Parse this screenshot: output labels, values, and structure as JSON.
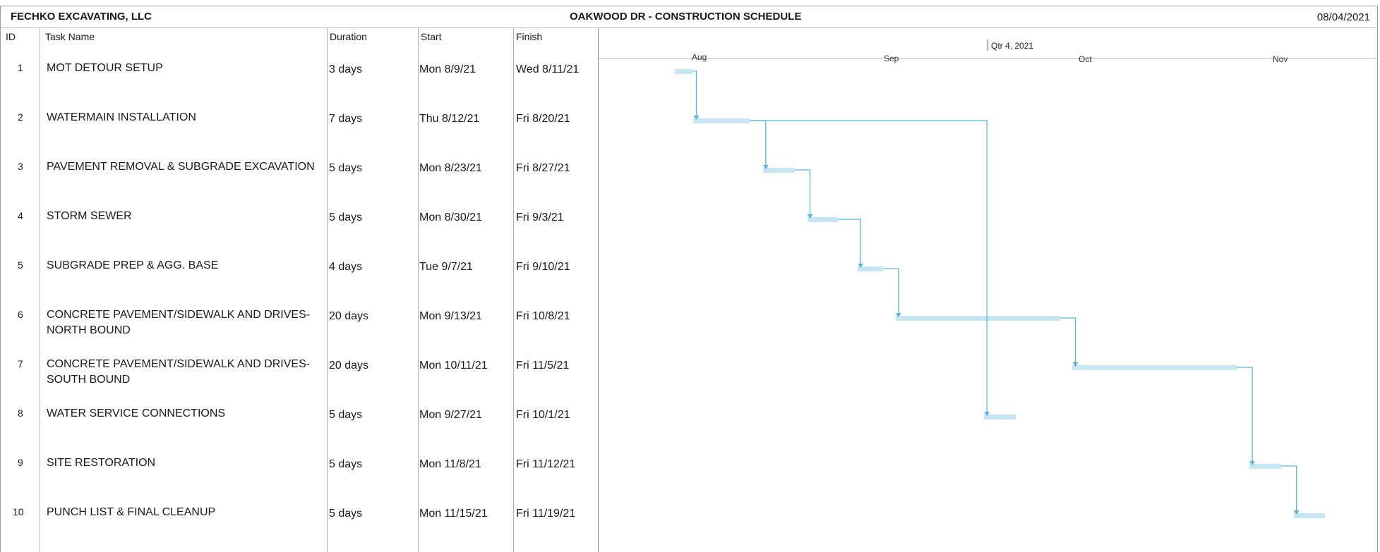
{
  "header": {
    "company": "FECHKO EXCAVATING, LLC",
    "title": "OAKWOOD DR - CONSTRUCTION SCHEDULE",
    "date": "08/04/2021"
  },
  "columns": {
    "id": "ID",
    "task_name": "Task Name",
    "duration": "Duration",
    "start": "Start",
    "finish": "Finish"
  },
  "timescale": {
    "quarter": "Qtr 4, 2021",
    "months": [
      "Aug",
      "Sep",
      "Oct",
      "Nov"
    ]
  },
  "tasks": [
    {
      "id": "1",
      "name": "MOT DETOUR SETUP",
      "name2": "",
      "duration": "3 days",
      "start": "Mon 8/9/21",
      "finish": "Wed 8/11/21"
    },
    {
      "id": "2",
      "name": "WATERMAIN INSTALLATION",
      "name2": "",
      "duration": "7 days",
      "start": "Thu 8/12/21",
      "finish": "Fri 8/20/21"
    },
    {
      "id": "3",
      "name": "PAVEMENT REMOVAL & SUBGRADE EXCAVATION",
      "name2": "",
      "duration": "5 days",
      "start": "Mon 8/23/21",
      "finish": "Fri 8/27/21"
    },
    {
      "id": "4",
      "name": "STORM SEWER",
      "name2": "",
      "duration": "5 days",
      "start": "Mon 8/30/21",
      "finish": "Fri 9/3/21"
    },
    {
      "id": "5",
      "name": "SUBGRADE PREP & AGG. BASE",
      "name2": "",
      "duration": "4 days",
      "start": "Tue 9/7/21",
      "finish": "Fri 9/10/21"
    },
    {
      "id": "6",
      "name": "CONCRETE PAVEMENT/SIDEWALK AND DRIVES-",
      "name2": "NORTH BOUND",
      "duration": "20 days",
      "start": "Mon 9/13/21",
      "finish": "Fri 10/8/21"
    },
    {
      "id": "7",
      "name": "CONCRETE PAVEMENT/SIDEWALK AND DRIVES-",
      "name2": "SOUTH BOUND",
      "duration": "20 days",
      "start": "Mon 10/11/21",
      "finish": "Fri 11/5/21"
    },
    {
      "id": "8",
      "name": "WATER SERVICE CONNECTIONS",
      "name2": "",
      "duration": "5 days",
      "start": "Mon 9/27/21",
      "finish": "Fri 10/1/21"
    },
    {
      "id": "9",
      "name": "SITE RESTORATION",
      "name2": "",
      "duration": "5 days",
      "start": "Mon 11/8/21",
      "finish": "Fri 11/12/21"
    },
    {
      "id": "10",
      "name": "PUNCH LIST & FINAL CLEANUP",
      "name2": "",
      "duration": "5 days",
      "start": "Mon 11/15/21",
      "finish": "Fri 11/19/21"
    }
  ],
  "gantt": {
    "bar_color": "#c7e6f4",
    "link_color": "#5bb3dc",
    "bars": [
      {
        "task": "1",
        "start": "2021-08-09",
        "finish": "2021-08-11"
      },
      {
        "task": "2",
        "start": "2021-08-12",
        "finish": "2021-08-20"
      },
      {
        "task": "3",
        "start": "2021-08-23",
        "finish": "2021-08-27"
      },
      {
        "task": "4",
        "start": "2021-08-30",
        "finish": "2021-09-03"
      },
      {
        "task": "5",
        "start": "2021-09-07",
        "finish": "2021-09-10"
      },
      {
        "task": "6",
        "start": "2021-09-13",
        "finish": "2021-10-08"
      },
      {
        "task": "7",
        "start": "2021-10-11",
        "finish": "2021-11-05"
      },
      {
        "task": "8",
        "start": "2021-09-27",
        "finish": "2021-10-01"
      },
      {
        "task": "9",
        "start": "2021-11-08",
        "finish": "2021-11-12"
      },
      {
        "task": "10",
        "start": "2021-11-15",
        "finish": "2021-11-19"
      }
    ],
    "links": [
      {
        "from": "1",
        "to": "2"
      },
      {
        "from": "2",
        "to": "3"
      },
      {
        "from": "3",
        "to": "4"
      },
      {
        "from": "4",
        "to": "5"
      },
      {
        "from": "5",
        "to": "6"
      },
      {
        "from": "6",
        "to": "7"
      },
      {
        "from": "2",
        "to": "8"
      },
      {
        "from": "7",
        "to": "9"
      },
      {
        "from": "9",
        "to": "10"
      }
    ]
  }
}
